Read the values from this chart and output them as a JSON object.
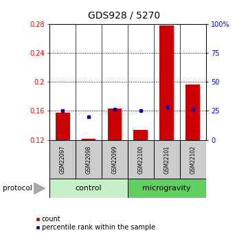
{
  "title": "GDS928 / 5270",
  "samples": [
    "GSM22097",
    "GSM22098",
    "GSM22099",
    "GSM22100",
    "GSM22101",
    "GSM22102"
  ],
  "red_values": [
    0.157,
    0.121,
    0.163,
    0.134,
    0.278,
    0.196
  ],
  "blue_values": [
    0.16,
    0.152,
    0.162,
    0.16,
    0.165,
    0.162
  ],
  "ymin": 0.12,
  "ymax": 0.28,
  "yticks_left": [
    0.12,
    0.16,
    0.2,
    0.24,
    0.28
  ],
  "yticks_right": [
    0,
    25,
    50,
    75,
    100
  ],
  "ytick_right_labels": [
    "0",
    "25",
    "50",
    "75",
    "100%"
  ],
  "groups": [
    {
      "label": "control",
      "start": 0,
      "end": 3,
      "color": "#c8f0c8"
    },
    {
      "label": "microgravity",
      "start": 3,
      "end": 6,
      "color": "#60d060"
    }
  ],
  "protocol_label": "protocol",
  "bar_color": "#cc0000",
  "dot_color": "#0000cc",
  "bar_width": 0.55,
  "sample_box_color": "#cccccc",
  "title_fontsize": 10,
  "tick_fontsize": 7,
  "legend_fontsize": 7,
  "group_fontsize": 8,
  "sample_fontsize": 5.5,
  "red_label": "count",
  "blue_label": "percentile rank within the sample"
}
